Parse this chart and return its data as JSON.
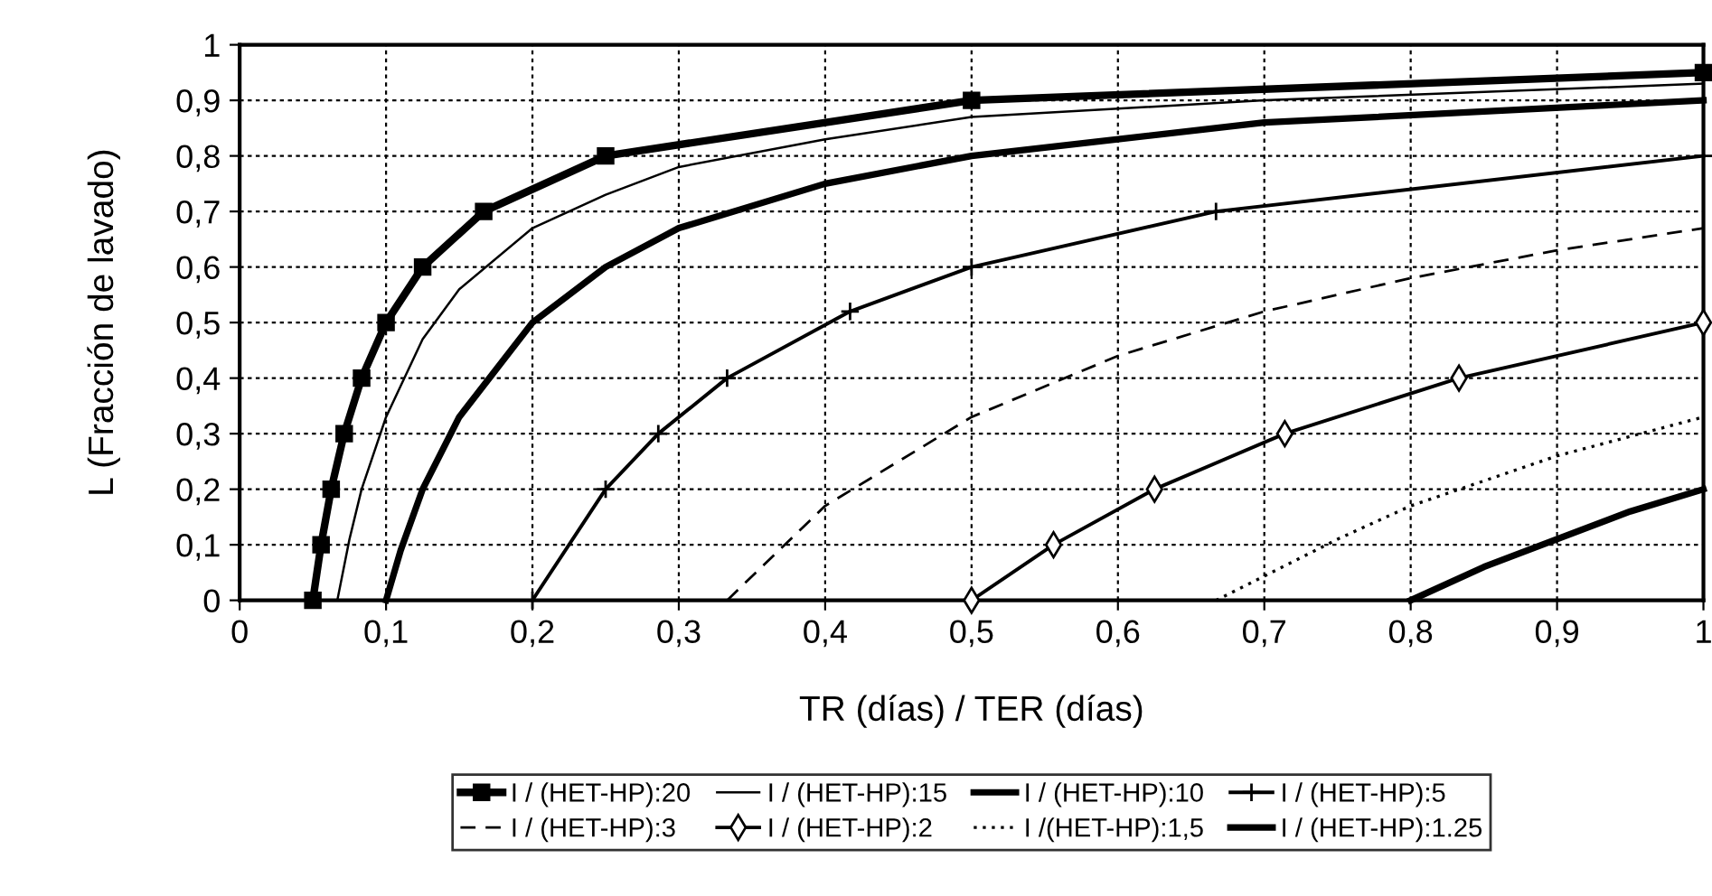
{
  "chart_data": {
    "type": "line",
    "xlabel": "TR (días) / TER (días)",
    "ylabel": "L (Fracción de lavado)",
    "xlim": [
      0,
      1
    ],
    "ylim": [
      0,
      1
    ],
    "xticks": [
      0,
      {
        "value": 0.1,
        "label": "0,1"
      },
      {
        "value": 0.2,
        "label": "0,2"
      },
      {
        "value": 0.3,
        "label": "0,3"
      },
      {
        "value": 0.4,
        "label": "0,4"
      },
      {
        "value": 0.5,
        "label": "0,5"
      },
      {
        "value": 0.6,
        "label": "0,6"
      },
      {
        "value": 0.7,
        "label": "0,7"
      },
      {
        "value": 0.8,
        "label": "0,8"
      },
      {
        "value": 0.9,
        "label": "0,9"
      },
      1
    ],
    "yticks": [
      0,
      {
        "value": 0.1,
        "label": "0,1"
      },
      {
        "value": 0.2,
        "label": "0,2"
      },
      {
        "value": 0.3,
        "label": "0,3"
      },
      {
        "value": 0.4,
        "label": "0,4"
      },
      {
        "value": 0.5,
        "label": "0,5"
      },
      {
        "value": 0.6,
        "label": "0,6"
      },
      {
        "value": 0.7,
        "label": "0,7"
      },
      {
        "value": 0.8,
        "label": "0,8"
      },
      {
        "value": 0.9,
        "label": "0,9"
      },
      1
    ],
    "grid": true,
    "legend": "bottom",
    "series": [
      {
        "name": "I / (HET-HP):20",
        "color": "#000000",
        "marker": "square",
        "x": [
          0.05,
          0.0556,
          0.0625,
          0.0714,
          0.0833,
          0.1,
          0.125,
          0.1667,
          0.25,
          0.5,
          1
        ],
        "values": [
          0,
          0.1,
          0.2,
          0.3,
          0.4,
          0.5,
          0.6,
          0.7,
          0.8,
          0.9,
          0.95
        ]
      },
      {
        "name": "I / (HET-HP):15",
        "color": "#000000",
        "x": [
          0.0667,
          0.075,
          0.0833,
          0.1,
          0.125,
          0.15,
          0.2,
          0.25,
          0.3,
          0.4,
          0.5,
          0.7,
          1
        ],
        "values": [
          0,
          0.11,
          0.2,
          0.33,
          0.47,
          0.56,
          0.67,
          0.73,
          0.78,
          0.83,
          0.87,
          0.9,
          0.93
        ]
      },
      {
        "name": "I / (HET-HP):10",
        "color": "#000000",
        "x": [
          0.1,
          0.11,
          0.125,
          0.15,
          0.2,
          0.25,
          0.3,
          0.4,
          0.5,
          0.7,
          1
        ],
        "values": [
          0,
          0.09,
          0.2,
          0.33,
          0.5,
          0.6,
          0.67,
          0.75,
          0.8,
          0.86,
          0.9
        ]
      },
      {
        "name": "I / (HET-HP):5",
        "color": "#000000",
        "marker": "cross",
        "x": [
          0.2,
          0.25,
          0.286,
          0.333,
          0.417,
          0.5,
          0.667,
          1
        ],
        "values": [
          0,
          0.2,
          0.3,
          0.4,
          0.52,
          0.6,
          0.7,
          0.8
        ]
      },
      {
        "name": "I / (HET-HP):3",
        "color": "#000000",
        "line_style": "dashed",
        "x": [
          0.333,
          0.4,
          0.5,
          0.6,
          0.7,
          0.8,
          0.9,
          1
        ],
        "values": [
          0,
          0.17,
          0.33,
          0.44,
          0.52,
          0.58,
          0.63,
          0.67
        ]
      },
      {
        "name": "I / (HET-HP):2",
        "color": "#000000",
        "marker": "diamond",
        "x": [
          0.5,
          0.556,
          0.625,
          0.714,
          0.833,
          1
        ],
        "values": [
          0,
          0.1,
          0.2,
          0.3,
          0.4,
          0.5
        ]
      },
      {
        "name": "I /(HET-HP):1,5",
        "color": "#000000",
        "line_style": "dotted",
        "x": [
          0.667,
          0.75,
          0.8,
          0.9,
          1
        ],
        "values": [
          0,
          0.11,
          0.17,
          0.26,
          0.33
        ]
      },
      {
        "name": "I / (HET-HP):1.25",
        "color": "#000000",
        "x": [
          0.8,
          0.85,
          0.9,
          0.95,
          1
        ],
        "values": [
          0,
          0.06,
          0.11,
          0.16,
          0.2
        ]
      }
    ]
  }
}
